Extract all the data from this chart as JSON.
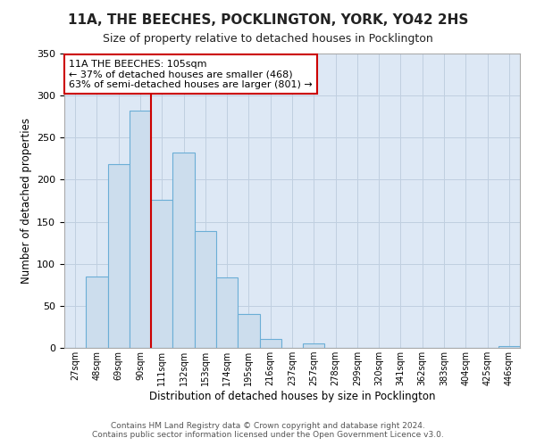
{
  "title": "11A, THE BEECHES, POCKLINGTON, YORK, YO42 2HS",
  "subtitle": "Size of property relative to detached houses in Pocklington",
  "xlabel": "Distribution of detached houses by size in Pocklington",
  "ylabel": "Number of detached properties",
  "bin_labels": [
    "27sqm",
    "48sqm",
    "69sqm",
    "90sqm",
    "111sqm",
    "132sqm",
    "153sqm",
    "174sqm",
    "195sqm",
    "216sqm",
    "237sqm",
    "257sqm",
    "278sqm",
    "299sqm",
    "320sqm",
    "341sqm",
    "362sqm",
    "383sqm",
    "404sqm",
    "425sqm",
    "446sqm"
  ],
  "bar_values": [
    0,
    85,
    219,
    282,
    176,
    232,
    139,
    84,
    40,
    11,
    0,
    5,
    0,
    0,
    0,
    0,
    0,
    0,
    0,
    0,
    2
  ],
  "bar_color": "#ccdded",
  "bar_edge_color": "#6baed6",
  "vline_x": 3.5,
  "vline_color": "#cc0000",
  "annotation_title": "11A THE BEECHES: 105sqm",
  "annotation_line1": "← 37% of detached houses are smaller (468)",
  "annotation_line2": "63% of semi-detached houses are larger (801) →",
  "annotation_box_color": "#ffffff",
  "annotation_box_edge_color": "#cc0000",
  "ylim": [
    0,
    350
  ],
  "yticks": [
    0,
    50,
    100,
    150,
    200,
    250,
    300,
    350
  ],
  "footer1": "Contains HM Land Registry data © Crown copyright and database right 2024.",
  "footer2": "Contains public sector information licensed under the Open Government Licence v3.0.",
  "background_color": "#ffffff",
  "plot_bg_color": "#dde8f5",
  "grid_color": "#c0cfe0"
}
